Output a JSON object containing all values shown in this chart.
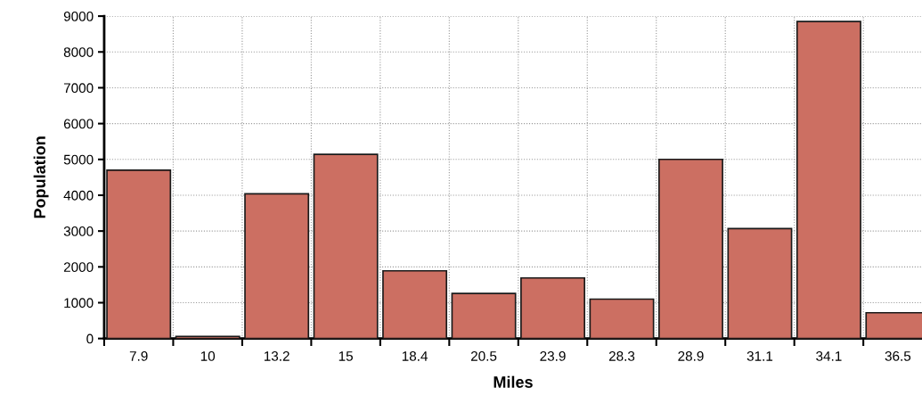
{
  "chart_data": {
    "type": "bar",
    "xlabel": "Miles",
    "ylabel": "Population",
    "categories": [
      "7.9",
      "10",
      "13.2",
      "15",
      "18.4",
      "20.5",
      "23.9",
      "28.3",
      "28.9",
      "31.1",
      "34.1",
      "36.5"
    ],
    "values": [
      4700,
      60,
      4040,
      5140,
      1890,
      1260,
      1690,
      1100,
      5000,
      3070,
      8850,
      720
    ],
    "color": "#cc6f62",
    "ylim": [
      0,
      9000
    ],
    "yticks": [
      0,
      1000,
      2000,
      3000,
      4000,
      5000,
      6000,
      7000,
      8000,
      9000
    ],
    "grid": true,
    "legend": false
  }
}
